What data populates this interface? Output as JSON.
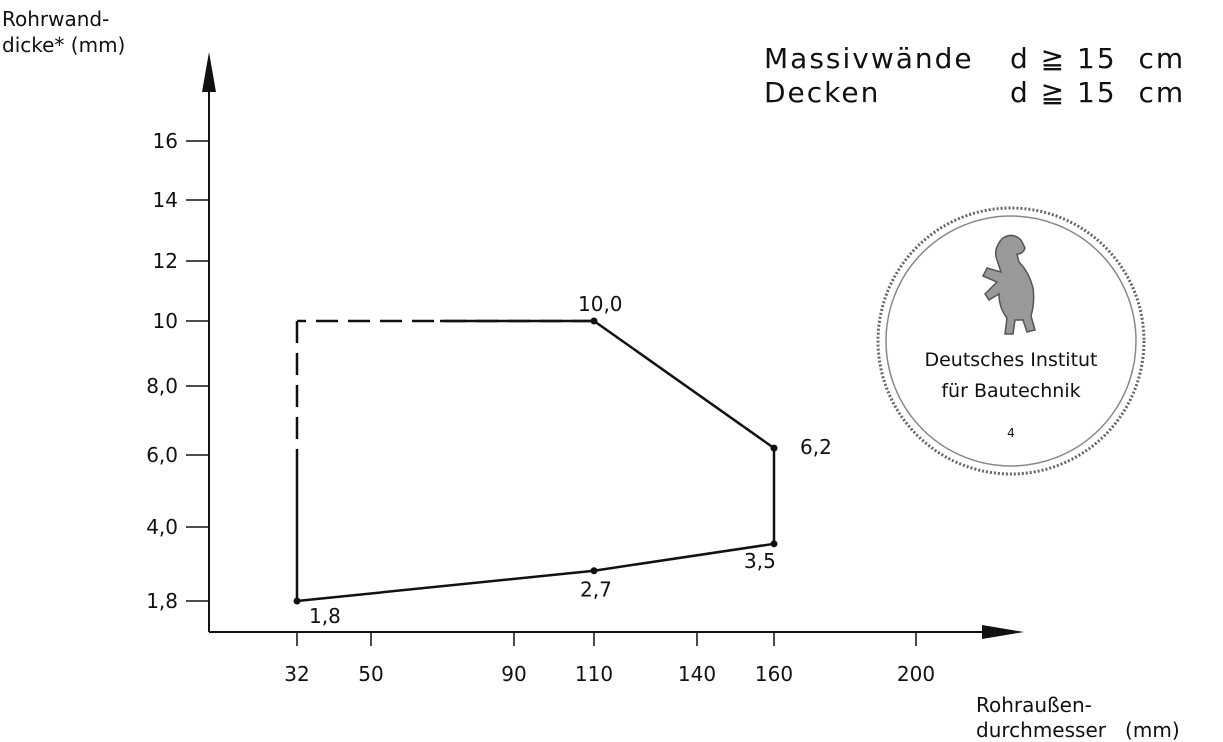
{
  "chart_data": {
    "type": "line",
    "ylabel_lines": [
      "Rohrwand-",
      "dicke* (mm)"
    ],
    "xlabel_lines": [
      "Rohraußen-",
      "durchmesser   (mm)"
    ],
    "yticks": [
      {
        "value": 1.8,
        "label": "1,8"
      },
      {
        "value": 4.0,
        "label": "4,0"
      },
      {
        "value": 6.0,
        "label": "6,0"
      },
      {
        "value": 8.0,
        "label": "8,0"
      },
      {
        "value": 10,
        "label": "10"
      },
      {
        "value": 12,
        "label": "12"
      },
      {
        "value": 14,
        "label": "14"
      },
      {
        "value": 16,
        "label": "16"
      }
    ],
    "xticks": [
      {
        "value": 32,
        "label": "32"
      },
      {
        "value": 50,
        "label": "50"
      },
      {
        "value": 90,
        "label": "90"
      },
      {
        "value": 110,
        "label": "110"
      },
      {
        "value": 140,
        "label": "140"
      },
      {
        "value": 160,
        "label": "160"
      },
      {
        "value": 200,
        "label": "200"
      }
    ],
    "series": [
      {
        "points": [
          {
            "x": 32,
            "y": 1.8,
            "label": "1,8"
          },
          {
            "x": 110,
            "y": 2.7,
            "label": "2,7"
          },
          {
            "x": 160,
            "y": 3.5,
            "label": "3,5"
          },
          {
            "x": 160,
            "y": 6.2,
            "label": "6,2"
          },
          {
            "x": 110,
            "y": 10.0,
            "label": "10,0"
          }
        ]
      }
    ],
    "dashed_segments": [
      {
        "from": {
          "x": 110,
          "y": 10.0
        },
        "to": {
          "x": 32,
          "y": 10.0
        }
      },
      {
        "from": {
          "x": 32,
          "y": 10.0
        },
        "to": {
          "x": 32,
          "y": 6.0
        }
      }
    ],
    "closing_segment": {
      "from": {
        "x": 32,
        "y": 6.0
      },
      "to": {
        "x": 32,
        "y": 1.8
      }
    }
  },
  "notes": [
    {
      "left": "Massivwände",
      "right": "d ≧ 15  cm"
    },
    {
      "left": "Decken",
      "right": "d ≧ 15  cm"
    }
  ],
  "stamp": {
    "line1": "Deutsches Institut",
    "line2": "für Bautechnik",
    "number": "4"
  }
}
